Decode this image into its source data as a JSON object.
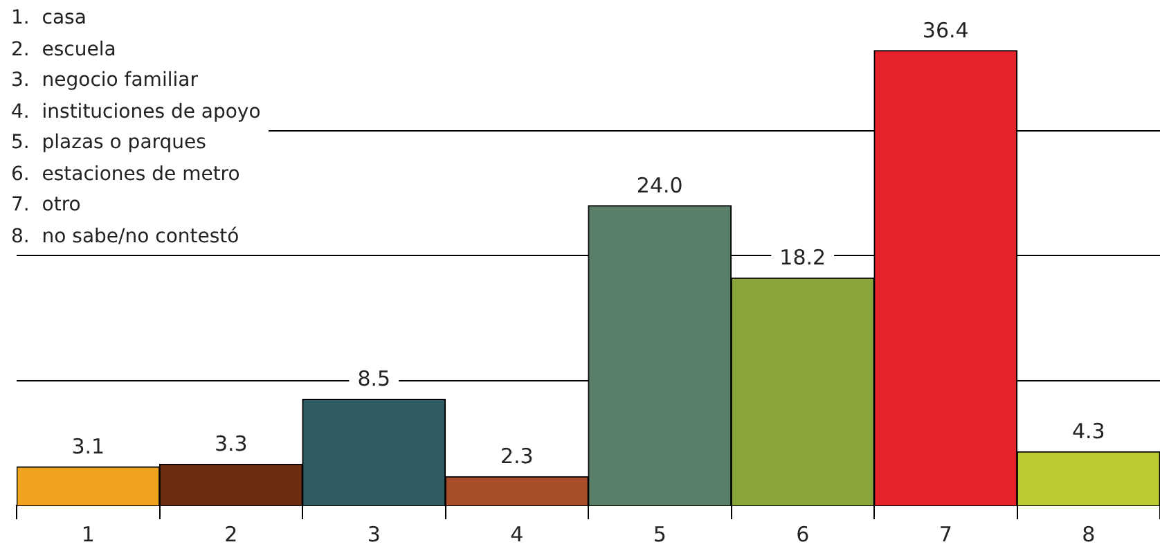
{
  "chart_data": {
    "type": "bar",
    "categories": [
      "1",
      "2",
      "3",
      "4",
      "5",
      "6",
      "7",
      "8"
    ],
    "values": [
      3.1,
      3.3,
      8.5,
      2.3,
      24.0,
      18.2,
      36.4,
      4.3
    ],
    "colors": [
      "#f0a31e",
      "#6b2e12",
      "#2f5b63",
      "#a84d2a",
      "#5a7f69",
      "#8aa63a",
      "#e52229",
      "#bccd33"
    ],
    "value_labels": [
      "3.1",
      "3.3",
      "8.5",
      "2.3",
      "24.0",
      "18.2",
      "36.4",
      "4.3"
    ],
    "yticks": [
      {
        "value": 10,
        "label": null
      },
      {
        "value": 20,
        "label": null
      },
      {
        "value": 30,
        "label": null
      }
    ],
    "grid": "y",
    "tick_labels": "x",
    "legend": false,
    "annotations": [
      "1.  casa",
      "2.  escuela",
      "3.  negocio familiar",
      "4.  instituciones de apoyo",
      "5.  plazas o parques",
      "6.  estaciones de metro",
      "7.  otro",
      "8.  no sabe/no contestó"
    ]
  }
}
